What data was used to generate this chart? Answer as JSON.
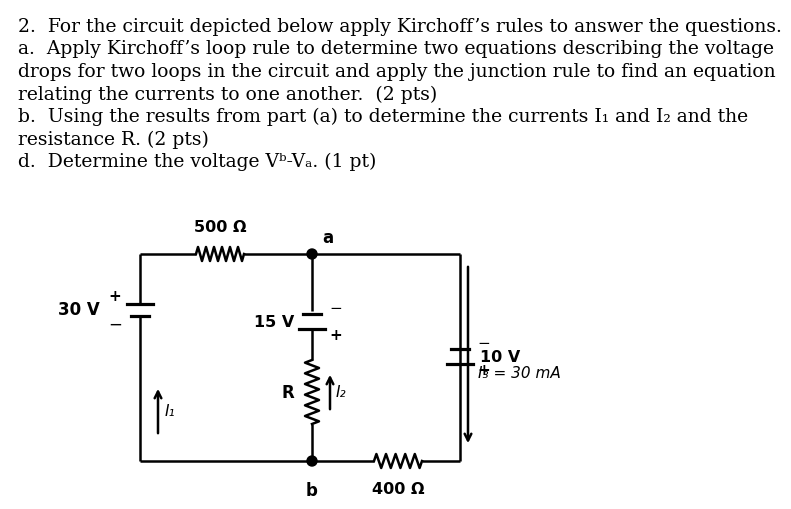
{
  "bg_color": "#ffffff",
  "text_color": "#000000",
  "font_size_text": 13.5,
  "circuit": {
    "V30_label": "30 V",
    "V15_label": "15 V",
    "V10_label": "10 V",
    "R500_label": "500 Ω",
    "R400_label": "400 Ω",
    "R_label": "R",
    "I1_label": "I₁",
    "I2_label": "I₂",
    "I3_label": "I₃ = 30 mA",
    "node_a": "a",
    "node_b": "b"
  },
  "lines": [
    "2.  For the circuit depicted below apply Kirchoff’s rules to answer the questions.",
    "a.  Apply Kirchoff’s loop rule to determine two equations describing the voltage",
    "drops for two loops in the circuit and apply the junction rule to find an equation",
    "relating the currents to one another.  (2 pts)",
    "b.  Using the results from part (a) to determine the currents I₁ and I₂ and the",
    "resistance R. (2 pts)",
    "d.  Determine the voltage Vᵇ-Vₐ. (1 pt)"
  ]
}
